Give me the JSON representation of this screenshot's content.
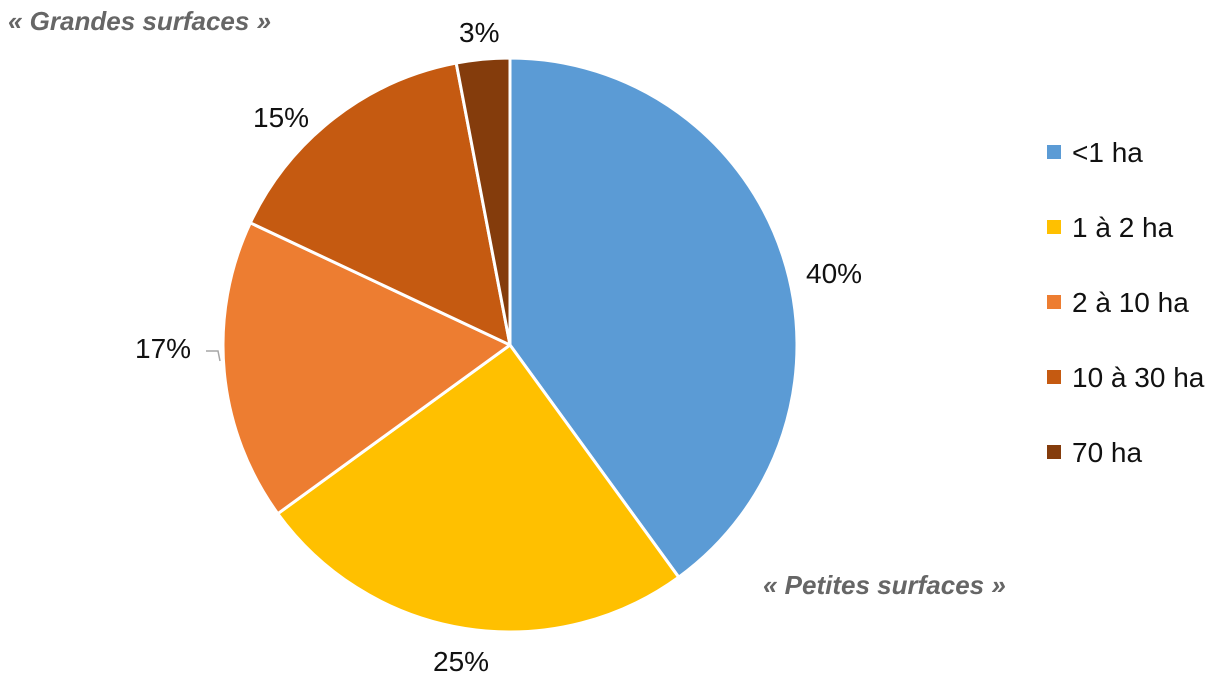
{
  "chart_data": {
    "type": "pie",
    "title": "",
    "categories": [
      "<1 ha",
      "1 à 2 ha",
      "2 à 10 ha",
      "10 à 30 ha",
      "70 ha"
    ],
    "values": [
      40,
      25,
      17,
      15,
      3
    ],
    "data_labels": [
      "40%",
      "25%",
      "17%",
      "15%",
      "3%"
    ],
    "colors": [
      "#5B9BD5",
      "#FFC000",
      "#ED7D31",
      "#C55A11",
      "#843C0C"
    ],
    "legend_position": "right",
    "annotations": [
      "« Grandes surfaces »",
      "« Petites surfaces »"
    ]
  }
}
